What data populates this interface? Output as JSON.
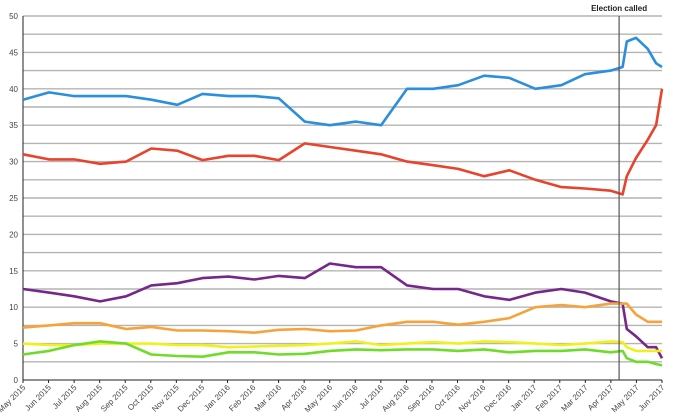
{
  "chart_data": {
    "type": "line",
    "title": "",
    "xlabel": "",
    "ylabel": "",
    "ylim": [
      0,
      50
    ],
    "y_ticks": [
      "0",
      "5",
      "10",
      "15",
      "20",
      "25",
      "30",
      "35",
      "40",
      "45",
      "50"
    ],
    "grid": true,
    "grid_step": 2.5,
    "x_tick_labels": [
      "May 2015",
      "Jun 2015",
      "Jul 2015",
      "Aug 2015",
      "Sep 2015",
      "Oct 2015",
      "Nov 2015",
      "Dec 2015",
      "Jan 2016",
      "Feb 2016",
      "Mar 2016",
      "Apr 2016",
      "May 2016",
      "Jun 2016",
      "Jul 2016",
      "Aug 2016",
      "Sep 2016",
      "Oct 2016",
      "Nov 2016",
      "Dec 2016",
      "Jan 2017",
      "Feb 2017",
      "Mar 2017",
      "Apr 2017",
      "May 2017",
      "Jun 2017"
    ],
    "xlim": [
      "2015-05-01",
      "2017-06-01"
    ],
    "annotation": {
      "label": "Election called",
      "x": "2017-04-18"
    },
    "x": [
      "2015-05-01",
      "2015-06-01",
      "2015-07-01",
      "2015-08-01",
      "2015-09-01",
      "2015-10-01",
      "2015-11-01",
      "2015-12-01",
      "2016-01-01",
      "2016-02-01",
      "2016-03-01",
      "2016-04-01",
      "2016-05-01",
      "2016-06-01",
      "2016-07-01",
      "2016-08-01",
      "2016-09-01",
      "2016-10-01",
      "2016-11-01",
      "2016-12-01",
      "2017-01-01",
      "2017-02-01",
      "2017-03-01",
      "2017-04-01",
      "2017-04-15",
      "2017-04-20",
      "2017-05-01",
      "2017-05-15",
      "2017-05-25",
      "2017-06-01"
    ],
    "series": [
      {
        "color": "#2b8fdd",
        "values": [
          38.5,
          39.5,
          39,
          39,
          39,
          38.5,
          37.8,
          39.3,
          39,
          39,
          38.7,
          35.5,
          35,
          35.5,
          35,
          40,
          40,
          40.5,
          41.8,
          41.5,
          40,
          40.5,
          42,
          42.5,
          43,
          46.5,
          47,
          45.5,
          43.5,
          43
        ]
      },
      {
        "color": "#e8432c",
        "values": [
          31,
          30.3,
          30.3,
          29.7,
          30,
          31.8,
          31.5,
          30.2,
          30.8,
          30.8,
          30.2,
          32.5,
          32,
          31.5,
          31,
          30,
          29.5,
          29,
          28,
          28.8,
          27.5,
          26.5,
          26.3,
          26,
          25.5,
          28,
          30.5,
          33,
          35,
          40
        ]
      },
      {
        "color": "#76278a",
        "values": [
          12.5,
          12,
          11.5,
          10.8,
          11.5,
          13,
          13.3,
          14,
          14.2,
          13.8,
          14.3,
          14,
          16,
          15.5,
          15.5,
          13,
          12.5,
          12.5,
          11.5,
          11,
          12,
          12.5,
          12,
          10.8,
          10.5,
          7,
          6,
          4.5,
          4.5,
          3
        ]
      },
      {
        "color": "#f5a33a",
        "values": [
          7.2,
          7.5,
          7.8,
          7.8,
          7,
          7.3,
          6.8,
          6.8,
          6.7,
          6.5,
          6.9,
          7,
          6.7,
          6.8,
          7.5,
          8,
          8,
          7.6,
          8,
          8.5,
          10,
          10.3,
          10,
          10.5,
          10.5,
          10.5,
          9,
          8,
          8,
          8
        ]
      },
      {
        "color": "#f0f01c",
        "values": [
          5,
          4.8,
          4.8,
          5,
          5,
          5,
          4.8,
          4.8,
          4.5,
          4.6,
          4.7,
          4.8,
          5,
          5.3,
          4.8,
          5,
          5.2,
          5,
          5.3,
          5.2,
          5,
          4.8,
          5,
          5.3,
          5.2,
          4.5,
          4,
          4,
          4,
          4
        ]
      },
      {
        "color": "#6fdc2a",
        "values": [
          3.5,
          4,
          4.8,
          5.3,
          5,
          3.5,
          3.3,
          3.2,
          3.8,
          3.8,
          3.5,
          3.6,
          4,
          4.2,
          4.1,
          4.2,
          4.2,
          4,
          4.2,
          3.8,
          4,
          4,
          4.2,
          3.8,
          4,
          3,
          2.5,
          2.5,
          2.2,
          2
        ]
      }
    ]
  }
}
